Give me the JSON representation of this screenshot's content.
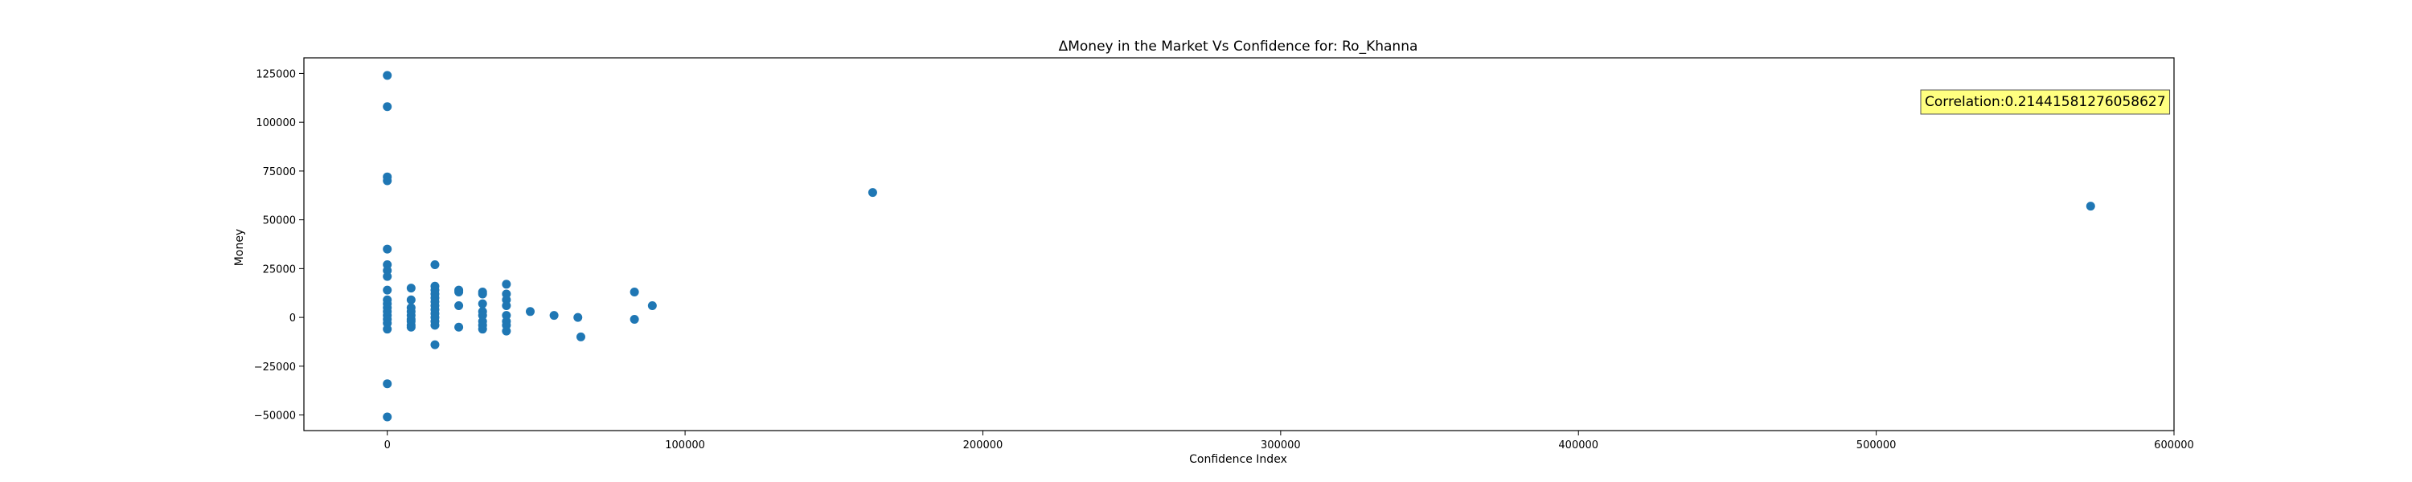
{
  "chart_data": {
    "type": "scatter",
    "title": "ΔMoney in the Market Vs Confidence for: Ro_Khanna",
    "xlabel": "Confidence Index",
    "ylabel": "Money",
    "xlim": [
      -28000,
      600000
    ],
    "ylim": [
      -58000,
      133000
    ],
    "xticks": [
      0,
      100000,
      200000,
      300000,
      400000,
      500000,
      600000
    ],
    "xtick_labels": [
      "0",
      "100000",
      "200000",
      "300000",
      "400000",
      "500000",
      "600000"
    ],
    "yticks": [
      -50000,
      -25000,
      0,
      25000,
      50000,
      75000,
      100000,
      125000
    ],
    "ytick_labels": [
      "−50000",
      "−25000",
      "0",
      "25000",
      "50000",
      "75000",
      "100000",
      "125000"
    ],
    "grid": false,
    "legend": "none",
    "annotation": {
      "text": "Correlation:0.21441581276058627",
      "position": "top-right"
    },
    "colors": {
      "marker": "#1f77b4",
      "annotation_fill": "#ffff80",
      "annotation_border": "#555555"
    },
    "points": [
      [
        0,
        124000
      ],
      [
        0,
        108000
      ],
      [
        0,
        72000
      ],
      [
        0,
        70000
      ],
      [
        0,
        35000
      ],
      [
        0,
        27000
      ],
      [
        0,
        24000
      ],
      [
        0,
        21000
      ],
      [
        0,
        14000
      ],
      [
        0,
        9000
      ],
      [
        0,
        7000
      ],
      [
        0,
        5000
      ],
      [
        0,
        3000
      ],
      [
        0,
        1000
      ],
      [
        0,
        -1000
      ],
      [
        0,
        -3000
      ],
      [
        0,
        -6000
      ],
      [
        0,
        -34000
      ],
      [
        0,
        -51000
      ],
      [
        8000,
        15000
      ],
      [
        8000,
        9000
      ],
      [
        8000,
        5000
      ],
      [
        8000,
        3000
      ],
      [
        8000,
        1000
      ],
      [
        8000,
        -1000
      ],
      [
        8000,
        -2000
      ],
      [
        8000,
        -4000
      ],
      [
        8000,
        -5000
      ],
      [
        16000,
        27000
      ],
      [
        16000,
        16000
      ],
      [
        16000,
        14000
      ],
      [
        16000,
        12000
      ],
      [
        16000,
        10000
      ],
      [
        16000,
        8000
      ],
      [
        16000,
        6000
      ],
      [
        16000,
        4000
      ],
      [
        16000,
        2000
      ],
      [
        16000,
        0
      ],
      [
        16000,
        -2000
      ],
      [
        16000,
        -4000
      ],
      [
        16000,
        -14000
      ],
      [
        24000,
        14000
      ],
      [
        24000,
        13000
      ],
      [
        24000,
        6000
      ],
      [
        24000,
        -5000
      ],
      [
        32000,
        13000
      ],
      [
        32000,
        12000
      ],
      [
        32000,
        7000
      ],
      [
        32000,
        3000
      ],
      [
        32000,
        1000
      ],
      [
        32000,
        -2000
      ],
      [
        32000,
        -4000
      ],
      [
        32000,
        -6000
      ],
      [
        40000,
        17000
      ],
      [
        40000,
        12000
      ],
      [
        40000,
        9000
      ],
      [
        40000,
        6000
      ],
      [
        40000,
        1000
      ],
      [
        40000,
        -2000
      ],
      [
        40000,
        -4000
      ],
      [
        40000,
        -7000
      ],
      [
        48000,
        3000
      ],
      [
        56000,
        1000
      ],
      [
        64000,
        0
      ],
      [
        65000,
        -10000
      ],
      [
        83000,
        13000
      ],
      [
        83000,
        -1000
      ],
      [
        89000,
        6000
      ],
      [
        163000,
        64000
      ],
      [
        572000,
        57000
      ]
    ]
  }
}
